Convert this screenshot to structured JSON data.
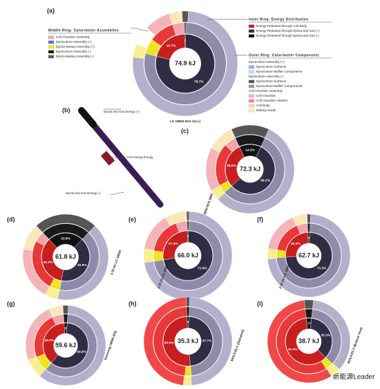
{
  "chart_data": [
    {
      "type": "sunburst",
      "label": "(a)",
      "center_label": "74.9 kJ",
      "caption": "LG 18650-MJ1 (ALL)",
      "inner": {
        "values": [
          0.6,
          78.7,
          20.7
        ],
        "value_labels": [
          "0.6%",
          "78.7%",
          "20.7%"
        ],
        "colors": [
          "#111111",
          "#2f2c44",
          "#c81e1e"
        ]
      },
      "middle": {
        "values": [
          0.6,
          78.7,
          6,
          10,
          4.7
        ],
        "colors": [
          "#1a1a1a",
          "#8e8aa8",
          "#f2e41c",
          "#e83838",
          "#f2a6aa"
        ]
      },
      "outer": {
        "values": [
          2,
          76,
          4,
          6,
          8,
          4
        ],
        "colors": [
          "#555555",
          "#b4b0cc",
          "#f7ef90",
          "#ffffff",
          "#f4b4b8",
          "#f8e8b8"
        ]
      }
    },
    {
      "type": "sunburst",
      "label": "(c)",
      "center_label": "72.3 kJ",
      "caption": "LG 18650-MJ1 (BR)",
      "inner": {
        "values": [
          14.2,
          56.2,
          29.6
        ],
        "value_labels": [
          "14.2%",
          "56.2%",
          "29.6%"
        ],
        "colors": [
          "#111111",
          "#2f2c44",
          "#c81e1e"
        ]
      },
      "middle": {
        "values": [
          14.2,
          56.2,
          4,
          20,
          5.6
        ],
        "colors": [
          "#1a1a1a",
          "#8e8aa8",
          "#f2e41c",
          "#e83838",
          "#f2a6aa"
        ]
      },
      "outer": {
        "values": [
          14,
          56,
          4,
          16,
          10
        ],
        "colors": [
          "#555555",
          "#b4b0cc",
          "#f7ef90",
          "#f4b4b8",
          "#f8e8b8"
        ]
      }
    },
    {
      "type": "sunburst",
      "label": "(d)",
      "center_label": "61.8 kJ",
      "caption": "3.35 Ah LG 18650",
      "inner": {
        "values": [
          23.9,
          40.9,
          35.2
        ],
        "value_labels": [
          "23.9%",
          "40.9%",
          "35.2%"
        ],
        "colors": [
          "#111111",
          "#2f2c44",
          "#c81e1e"
        ]
      },
      "middle": {
        "values": [
          23.9,
          40.9,
          5,
          25,
          5.2
        ],
        "colors": [
          "#1a1a1a",
          "#8e8aa8",
          "#f2e41c",
          "#e83838",
          "#f2a6aa"
        ]
      },
      "outer": {
        "values": [
          24,
          41,
          5,
          20,
          10
        ],
        "colors": [
          "#555555",
          "#b4b0cc",
          "#f7ef90",
          "#f4b4b8",
          "#f8e8b8"
        ]
      }
    },
    {
      "type": "sunburst",
      "label": "(e)",
      "center_label": "66.0 kJ",
      "caption": "3.35 Ah LG 18650",
      "inner": {
        "values": [
          0.8,
          71.9,
          27.3
        ],
        "value_labels": [
          "0.8%",
          "71.9%",
          "27.3%"
        ],
        "colors": [
          "#111111",
          "#2f2c44",
          "#c81e1e"
        ]
      },
      "middle": {
        "values": [
          0.8,
          71.9,
          5,
          17,
          5.3
        ],
        "colors": [
          "#1a1a1a",
          "#8e8aa8",
          "#f2e41c",
          "#e83838",
          "#f2a6aa"
        ]
      },
      "outer": {
        "values": [
          1,
          72,
          5,
          14,
          8
        ],
        "colors": [
          "#555555",
          "#b4b0cc",
          "#f7ef90",
          "#f4b4b8",
          "#f8e8b8"
        ]
      }
    },
    {
      "type": "sunburst",
      "label": "(f)",
      "center_label": "62.7 kJ",
      "caption": "3.35 Ah LG 18650",
      "inner": {
        "values": [
          1.4,
          73.3,
          25.3
        ],
        "value_labels": [
          "1.4%",
          "73.3%",
          "25.3%"
        ],
        "colors": [
          "#111111",
          "#2f2c44",
          "#c81e1e"
        ]
      },
      "middle": {
        "values": [
          1.4,
          73.3,
          4,
          16,
          5.3
        ],
        "colors": [
          "#1a1a1a",
          "#8e8aa8",
          "#f2e41c",
          "#e83838",
          "#f2a6aa"
        ]
      },
      "outer": {
        "values": [
          1.4,
          73,
          4,
          16,
          5.6
        ],
        "colors": [
          "#555555",
          "#b4b0cc",
          "#f7ef90",
          "#f4b4b8",
          "#f8e8b8"
        ]
      }
    },
    {
      "type": "sunburst",
      "label": "(g)",
      "center_label": "59.6 kJ",
      "caption": "Samsung 18650-30Q",
      "inner": {
        "values": [
          2.3,
          59.8,
          38.0
        ],
        "value_labels": [
          "2.3%",
          "59.8%",
          "38.0%"
        ],
        "colors": [
          "#111111",
          "#2f2c44",
          "#c81e1e"
        ]
      },
      "middle": {
        "values": [
          2.3,
          59.8,
          8,
          24,
          5.9
        ],
        "colors": [
          "#1a1a1a",
          "#8e8aa8",
          "#f2e41c",
          "#e83838",
          "#f2a6aa"
        ]
      },
      "outer": {
        "values": [
          2.3,
          60,
          8,
          24,
          5.7
        ],
        "colors": [
          "#555555",
          "#b4b0cc",
          "#f7ef90",
          "#f4b4b8",
          "#f8e8b8"
        ]
      }
    },
    {
      "type": "sunburst",
      "label": "(h)",
      "center_label": "35.3 kJ",
      "caption": "MOLICEL® (Standard)",
      "inner": {
        "values": [
          1.4,
          47.7,
          50.9
        ],
        "value_labels": [
          "1.4%",
          "47.7%",
          "50.9%"
        ],
        "colors": [
          "#111111",
          "#2f2c44",
          "#c81e1e"
        ]
      },
      "middle": {
        "values": [
          1.4,
          47.7,
          3,
          47.9
        ],
        "colors": [
          "#1a1a1a",
          "#8e8aa8",
          "#f2e41c",
          "#e83838"
        ]
      },
      "outer": {
        "values": [
          1.4,
          48,
          3,
          47.6
        ],
        "colors": [
          "#555555",
          "#b4b0cc",
          "#f7ef90",
          "#f04848"
        ]
      }
    },
    {
      "type": "sunburst",
      "label": "(i)",
      "center_label": "38.7 kJ",
      "caption": "MOLICEL® (Bottom Vent)",
      "inner": {
        "values": [
          3.7,
          35.3,
          61.0
        ],
        "value_labels": [
          "3.7%",
          "35.3%",
          "61.0%"
        ],
        "colors": [
          "#111111",
          "#2f2c44",
          "#c81e1e"
        ]
      },
      "middle": {
        "values": [
          3.7,
          35.3,
          4,
          57
        ],
        "colors": [
          "#1a1a1a",
          "#8e8aa8",
          "#f2e41c",
          "#e83838"
        ]
      },
      "outer": {
        "values": [
          3.7,
          35,
          4,
          57.3
        ],
        "colors": [
          "#555555",
          "#b4b0cc",
          "#f7ef90",
          "#f04848"
        ]
      }
    }
  ],
  "legends": {
    "middle": {
      "title": "Middle Ring: Calorimeter Assemblies",
      "items": [
        {
          "name": "Cell Chamber Assembly",
          "color": "#f2a6aa"
        },
        {
          "name": "Ejecta Bore Assembly (+)",
          "color": "#4a78c8"
        },
        {
          "name": "Ejecta Mating Assembly (+)",
          "color": "#f2e41c"
        },
        {
          "name": "Ejecta Bore Assembly (-)",
          "color": "#1a1a1a"
        },
        {
          "name": "Ejecta Mating Assembly (-)",
          "color": "#5a5a5a"
        }
      ]
    },
    "inner": {
      "title": "Inner Ring: Energy Distribution",
      "items": [
        {
          "name": "Energy Released through Cell Body",
          "color": "#c81e1e"
        },
        {
          "name": "Energy Released through Ejecta and Gas (+)",
          "color": "#2f2c44"
        },
        {
          "name": "Energy Released through Ejecta and Gas (-)",
          "color": "#111111"
        }
      ]
    },
    "outer": {
      "title": "Outer Ring: Calorimeter Components",
      "items": [
        {
          "name": "Ejecta Bore Assembly (+)"
        },
        {
          "name": "Ejecta Bore Surfaces",
          "color": "#8fb0e0"
        },
        {
          "name": "Ejecta Bore Muffler Components",
          "color": "#c8d8f0"
        },
        {
          "name": "Ejecta Bore Assembly (-)"
        },
        {
          "name": "Ejecta Bore Surfaces",
          "color": "#555555"
        },
        {
          "name": "Ejecta Bore Muffler Components",
          "color": "#999999"
        },
        {
          "name": "Cell Chamber Assembly"
        },
        {
          "name": "Cell Chamber",
          "color": "#f4b4b8"
        },
        {
          "name": "Cell Chamber Heaters",
          "color": "#f08890"
        },
        {
          "name": "Cell Body",
          "color": "#f8d8a8"
        },
        {
          "name": "Mating Heads",
          "color": "#f8e8b8"
        }
      ]
    }
  },
  "panel_b": {
    "label": "(b)",
    "labels": [
      "Ejecta and Gas Energy (+)",
      "Cell Casing Energy",
      "Ejecta and Gas Energy (-)"
    ]
  },
  "watermark": "新能源Leader"
}
